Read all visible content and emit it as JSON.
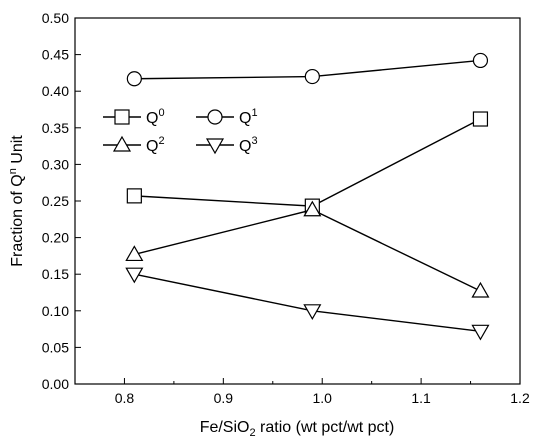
{
  "chart_data": {
    "type": "scatter",
    "xlabel_main": "Fe/SiO",
    "xlabel_sub": "2",
    "xlabel_rest": " ratio (wt pct/wt pct)",
    "ylabel_main": "Fraction of Q",
    "ylabel_sup": "n",
    "ylabel_rest": " Unit",
    "xlim": [
      0.75,
      1.2
    ],
    "ylim": [
      0.0,
      0.5
    ],
    "xticks": [
      0.8,
      0.9,
      1.0,
      1.1,
      1.2
    ],
    "xtick_labels": [
      "0.8",
      "0.9",
      "1.0",
      "1.1",
      "1.2"
    ],
    "yticks": [
      0.0,
      0.05,
      0.1,
      0.15,
      0.2,
      0.25,
      0.3,
      0.35,
      0.4,
      0.45,
      0.5
    ],
    "ytick_labels": [
      "0.00",
      "0.05",
      "0.10",
      "0.15",
      "0.20",
      "0.25",
      "0.30",
      "0.35",
      "0.40",
      "0.45",
      "0.50"
    ],
    "x": [
      0.81,
      0.99,
      1.16
    ],
    "legend_position": "upper-left",
    "series": [
      {
        "name_base": "Q",
        "name_sup": "0",
        "marker": "square",
        "values": [
          0.257,
          0.243,
          0.362
        ]
      },
      {
        "name_base": "Q",
        "name_sup": "1",
        "marker": "circle",
        "values": [
          0.417,
          0.42,
          0.442
        ]
      },
      {
        "name_base": "Q",
        "name_sup": "2",
        "marker": "triangle-up",
        "values": [
          0.177,
          0.238,
          0.127
        ]
      },
      {
        "name_base": "Q",
        "name_sup": "3",
        "marker": "triangle-down",
        "values": [
          0.15,
          0.1,
          0.072
        ]
      }
    ],
    "colors": {
      "line": "#000000",
      "marker_fill": "#ffffff"
    }
  }
}
